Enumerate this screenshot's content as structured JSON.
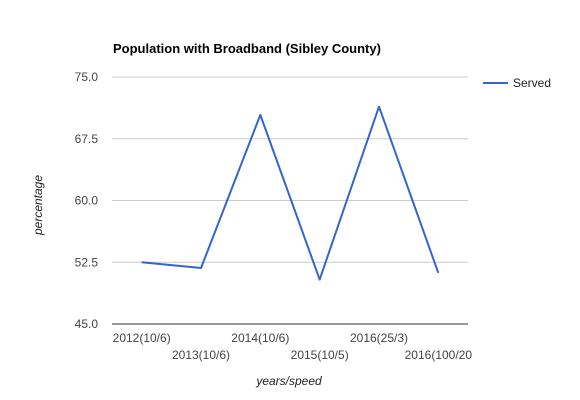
{
  "chart_data": {
    "type": "line",
    "title": "Population with Broadband (Sibley County)",
    "xlabel": "years/speed",
    "ylabel": "percentage",
    "categories": [
      "2012(10/6)",
      "2013(10/6)",
      "2014(10/6)",
      "2015(10/5)",
      "2016(25/3)",
      "2016(100/20"
    ],
    "series": [
      {
        "name": "Served",
        "values": [
          52.5,
          51.8,
          70.4,
          50.4,
          71.4,
          51.2
        ],
        "color": "#3366cc"
      }
    ],
    "ylim": [
      45,
      75
    ],
    "yticks": [
      "75.0",
      "67.5",
      "60.0",
      "52.5",
      "45.0"
    ],
    "ytick_values": [
      75,
      67.5,
      60,
      52.5,
      45
    ],
    "grid": true,
    "legend_position": "right"
  }
}
